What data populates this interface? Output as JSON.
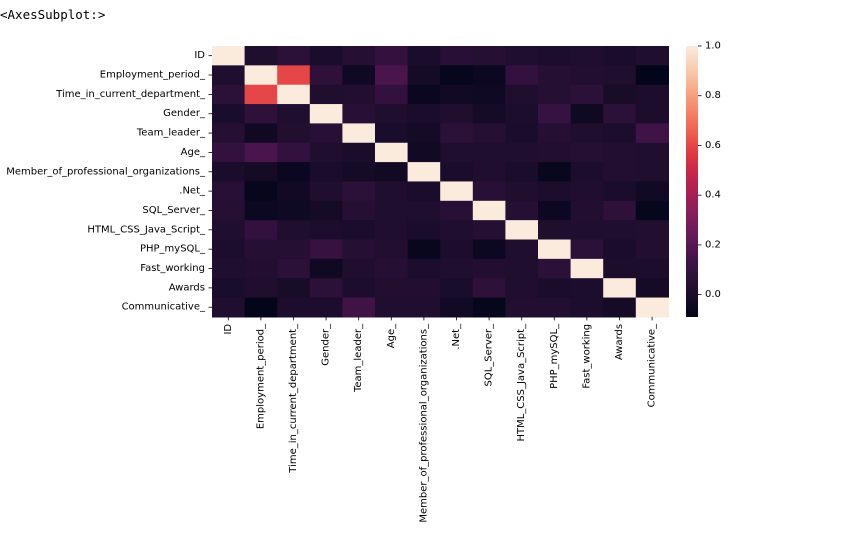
{
  "output_repr": "<AxesSubplot:>",
  "chart_data": {
    "type": "heatmap",
    "title": "",
    "xlabel": "",
    "ylabel": "",
    "labels": [
      "ID",
      "Employment_period_",
      "Time_in_current_department_",
      "Gender_",
      "Team_leader_",
      "Age_",
      "Member_of_professional_organizations_",
      ".Net_",
      "SQL_Server_",
      "HTML_CSS_Java_Script_",
      "PHP_mySQL_",
      "Fast_working",
      "Awards",
      "Communicative_"
    ],
    "matrix": [
      [
        1.0,
        0.02,
        0.06,
        0.0,
        0.04,
        0.09,
        0.0,
        0.05,
        0.04,
        0.02,
        0.01,
        0.02,
        0.0,
        0.02
      ],
      [
        0.02,
        1.0,
        0.6,
        0.07,
        -0.04,
        0.16,
        -0.02,
        -0.08,
        -0.05,
        0.09,
        0.04,
        0.03,
        0.02,
        -0.09
      ],
      [
        0.06,
        0.6,
        1.0,
        0.02,
        0.03,
        0.09,
        -0.06,
        -0.03,
        -0.04,
        0.02,
        0.04,
        0.06,
        -0.01,
        0.01
      ],
      [
        0.0,
        0.07,
        0.02,
        1.0,
        0.05,
        0.02,
        0.0,
        0.02,
        -0.02,
        0.01,
        0.1,
        -0.04,
        0.06,
        0.01
      ],
      [
        0.04,
        -0.04,
        0.03,
        0.05,
        1.0,
        0.0,
        -0.02,
        0.06,
        0.04,
        0.0,
        0.04,
        0.02,
        0.01,
        0.13
      ],
      [
        0.09,
        0.16,
        0.09,
        0.02,
        0.0,
        1.0,
        -0.03,
        0.02,
        0.02,
        0.02,
        0.03,
        0.04,
        0.03,
        0.02
      ],
      [
        0.0,
        -0.02,
        -0.06,
        0.0,
        -0.02,
        -0.03,
        1.0,
        0.0,
        0.02,
        0.0,
        -0.07,
        0.01,
        0.03,
        0.02
      ],
      [
        0.05,
        -0.08,
        -0.03,
        0.02,
        0.06,
        0.02,
        0.0,
        1.0,
        0.05,
        0.02,
        0.01,
        0.02,
        0.0,
        -0.03
      ],
      [
        0.04,
        -0.05,
        -0.04,
        -0.02,
        0.04,
        0.02,
        0.02,
        0.05,
        1.0,
        0.04,
        -0.05,
        0.03,
        0.07,
        -0.08
      ],
      [
        0.02,
        0.09,
        0.02,
        0.01,
        0.0,
        0.02,
        0.0,
        0.02,
        0.04,
        1.0,
        0.02,
        0.02,
        0.02,
        0.03
      ],
      [
        0.01,
        0.04,
        0.04,
        0.1,
        0.04,
        0.03,
        -0.07,
        0.01,
        -0.05,
        0.02,
        1.0,
        0.06,
        0.0,
        0.03
      ],
      [
        0.02,
        0.03,
        0.06,
        -0.04,
        0.02,
        0.04,
        0.01,
        0.02,
        0.03,
        0.02,
        0.06,
        1.0,
        0.01,
        0.01
      ],
      [
        0.0,
        0.02,
        -0.01,
        0.06,
        0.01,
        0.03,
        0.03,
        0.0,
        0.07,
        0.02,
        0.0,
        0.01,
        1.0,
        -0.02
      ],
      [
        0.02,
        -0.09,
        0.01,
        0.01,
        0.13,
        0.02,
        0.02,
        -0.03,
        -0.08,
        0.03,
        0.03,
        0.01,
        -0.02,
        1.0
      ]
    ],
    "colorbar": {
      "vmin": -0.09,
      "vmax": 1.0,
      "ticks": [
        1.0,
        0.8,
        0.6,
        0.4,
        0.2,
        0.0
      ],
      "tick_labels": [
        "1.0",
        "0.8",
        "0.6",
        "0.4",
        "0.2",
        "0.0"
      ],
      "colormap": "rocket"
    },
    "grid": false,
    "legend": "colorbar-right"
  }
}
